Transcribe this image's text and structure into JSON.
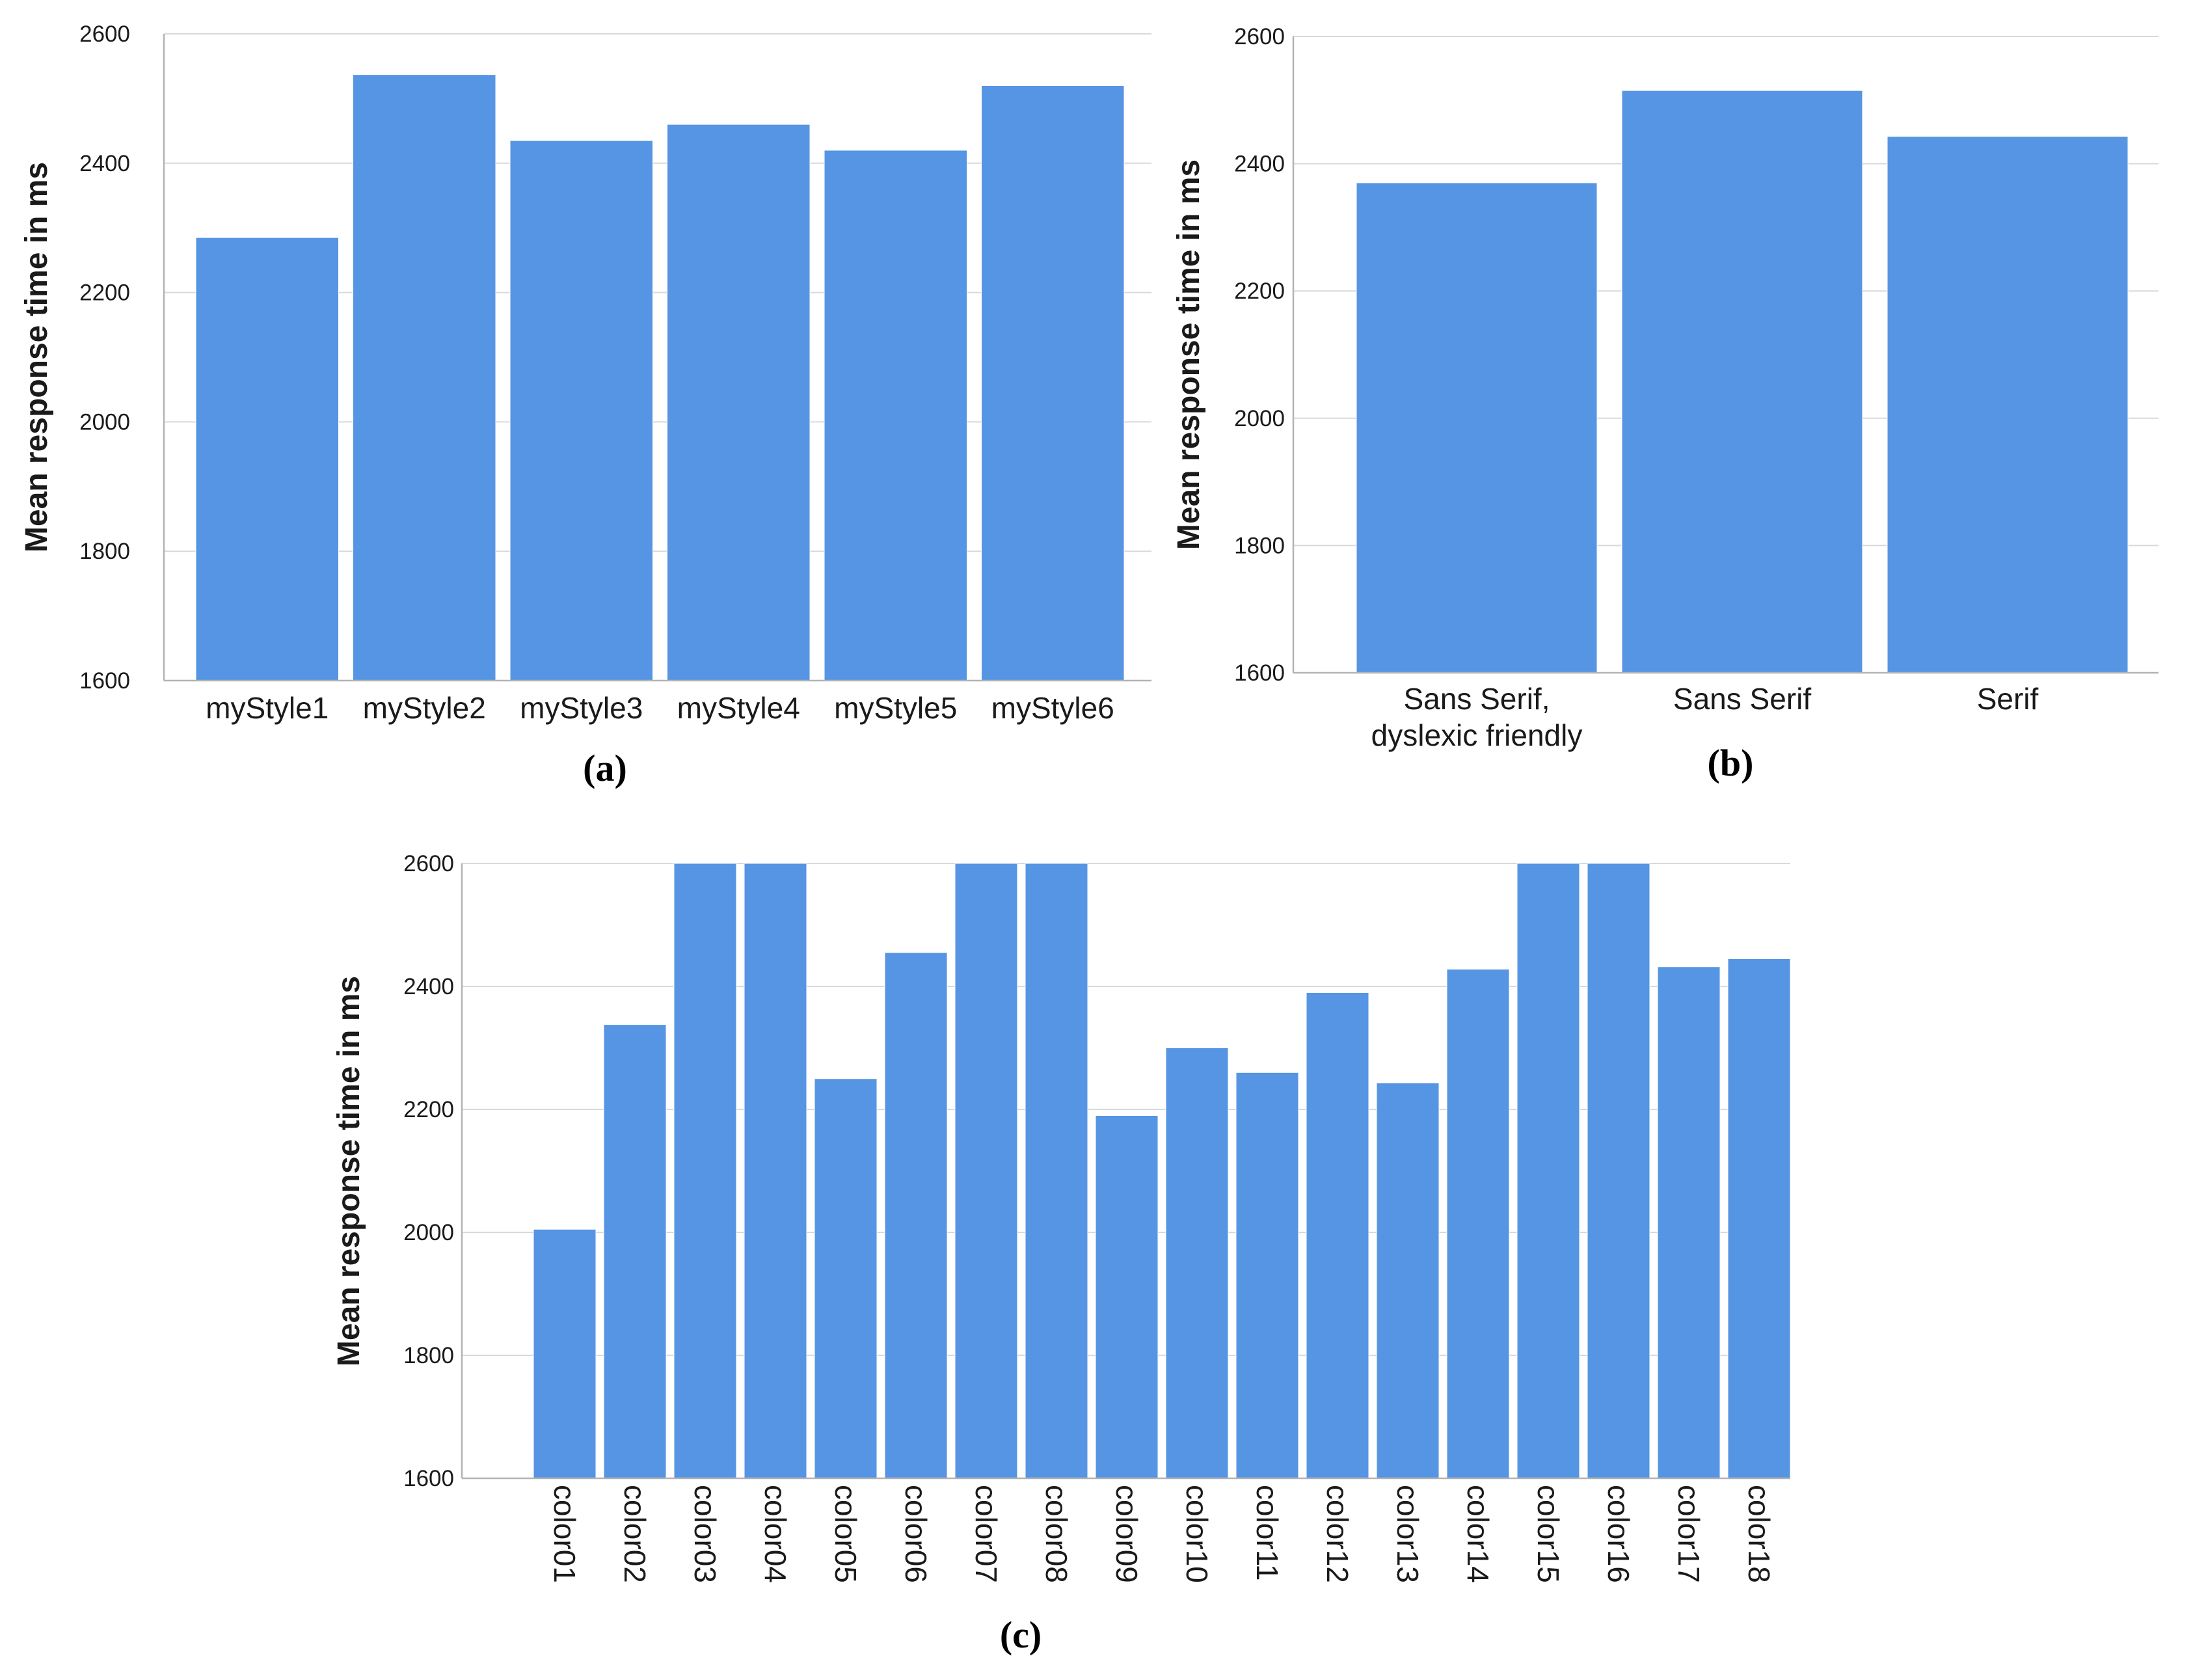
{
  "colors": {
    "bar": "#5595e3",
    "bar_edge": "#ffffff"
  },
  "chart_data": [
    {
      "id": "a",
      "type": "bar",
      "panel_label": "(a)",
      "title": "",
      "xlabel": "",
      "ylabel": "Mean response time in ms",
      "ylim": [
        1600,
        2600
      ],
      "yticks": [
        1600,
        1800,
        2000,
        2200,
        2400,
        2600
      ],
      "grid": true,
      "categories": [
        "myStyle1",
        "myStyle2",
        "myStyle3",
        "myStyle4",
        "myStyle5",
        "myStyle6"
      ],
      "values": [
        2285,
        2537,
        2435,
        2460,
        2420,
        2520
      ]
    },
    {
      "id": "b",
      "type": "bar",
      "panel_label": "(b)",
      "title": "",
      "xlabel": "",
      "ylabel": "Mean response time in ms",
      "ylim": [
        1600,
        2600
      ],
      "yticks": [
        1600,
        1800,
        2000,
        2200,
        2400,
        2600
      ],
      "grid": true,
      "categories": [
        [
          "Sans Serif,",
          "dyslexic friendly"
        ],
        [
          "Sans Serif"
        ],
        [
          "Serif"
        ]
      ],
      "values": [
        2370,
        2515,
        2443
      ]
    },
    {
      "id": "c",
      "type": "bar",
      "panel_label": "(c)",
      "title": "",
      "xlabel": "",
      "ylabel": "Mean response time in ms",
      "ylim": [
        1600,
        2600
      ],
      "yticks": [
        1600,
        1800,
        2000,
        2200,
        2400,
        2600
      ],
      "grid": true,
      "categories": [
        "color01",
        "color02",
        "color03",
        "color04",
        "color05",
        "color06",
        "color07",
        "color08",
        "color09",
        "color10",
        "color11",
        "color12",
        "color13",
        "color14",
        "color15",
        "color16",
        "color17",
        "color18"
      ],
      "values": [
        2005,
        2338,
        2600,
        2600,
        2250,
        2455,
        2600,
        2600,
        2190,
        2300,
        2260,
        2390,
        2243,
        2428,
        2600,
        2600,
        2432,
        2445
      ]
    }
  ]
}
